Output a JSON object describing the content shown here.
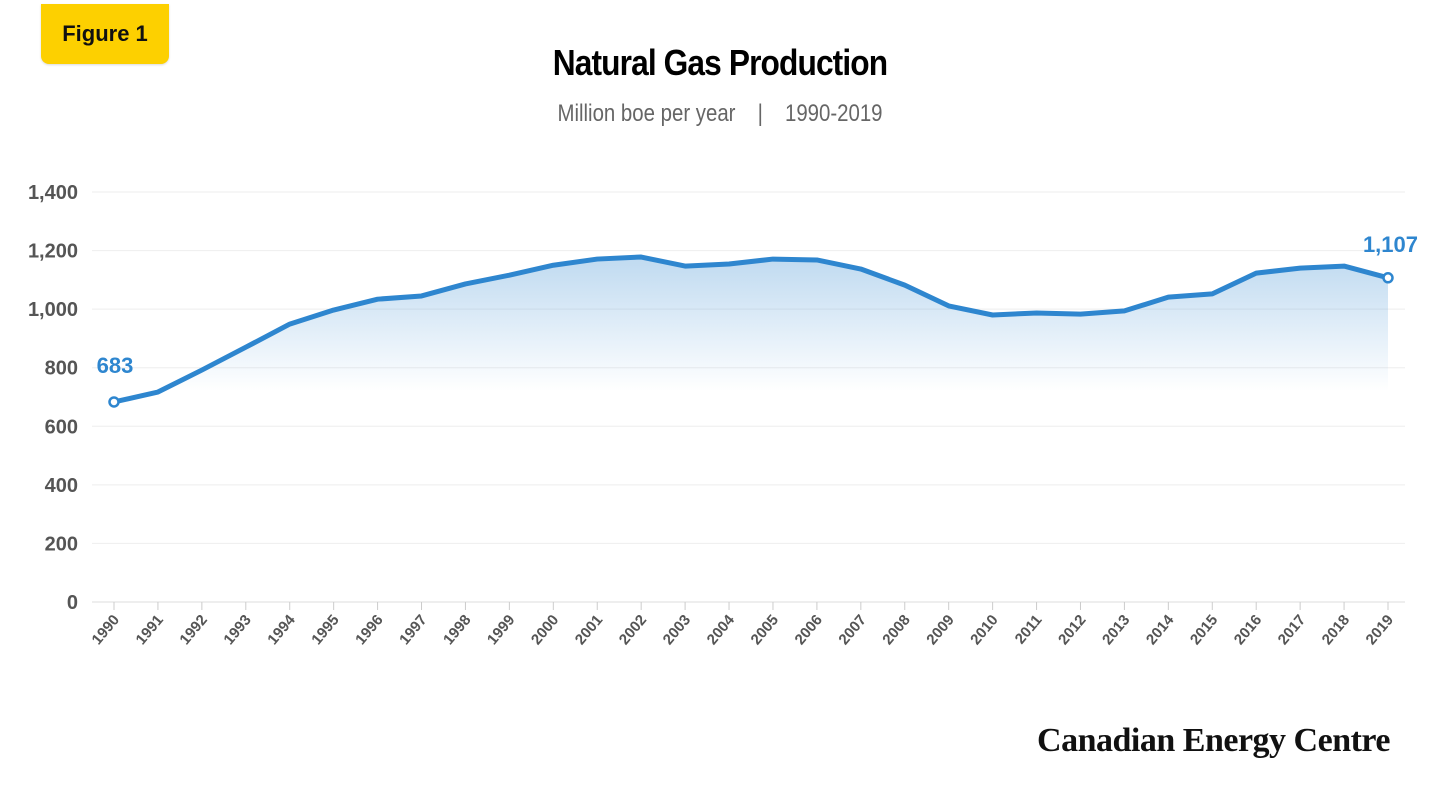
{
  "badge": "Figure 1",
  "chart_data": {
    "type": "area",
    "title": "Natural Gas Production",
    "subtitle_units": "Million boe per year",
    "subtitle_range": "1990-2019",
    "xlabel": "",
    "ylabel": "",
    "ylim": [
      0,
      1400
    ],
    "yticks": [
      "0",
      "200",
      "400",
      "600",
      "800",
      "1,000",
      "1,200",
      "1,400"
    ],
    "yticks_values": [
      0,
      200,
      400,
      600,
      800,
      1000,
      1200,
      1400
    ],
    "grid": true,
    "color": "#2e86cf",
    "x": [
      1990,
      1991,
      1992,
      1993,
      1994,
      1995,
      1996,
      1997,
      1998,
      1999,
      2000,
      2001,
      2002,
      2003,
      2004,
      2005,
      2006,
      2007,
      2008,
      2009,
      2010,
      2011,
      2012,
      2013,
      2014,
      2015,
      2016,
      2017,
      2018,
      2019
    ],
    "values": [
      683,
      717,
      792,
      870,
      949,
      997,
      1034,
      1045,
      1086,
      1116,
      1150,
      1171,
      1178,
      1147,
      1154,
      1171,
      1168,
      1137,
      1082,
      1011,
      980,
      987,
      983,
      994,
      1041,
      1052,
      1123,
      1140,
      1147,
      1107
    ],
    "annotations": [
      {
        "x": 1990,
        "label": "683"
      },
      {
        "x": 2019,
        "label": "1,107"
      }
    ]
  },
  "brand": "Canadian Energy Centre"
}
